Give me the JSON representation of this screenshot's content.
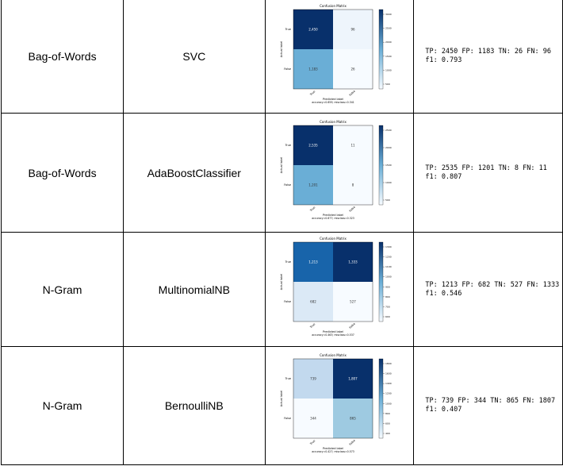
{
  "rows": [
    {
      "feature": "Bag-of-Words",
      "model": "SVC",
      "matrix": {
        "title": "Confusion Matrix",
        "y_label": "Actual label",
        "x_label": "Predicted label",
        "classes": [
          "True",
          "False"
        ],
        "cells": [
          [
            "2,450",
            "96"
          ],
          [
            "1,183",
            "26"
          ]
        ],
        "colors": [
          [
            "#08306b",
            "#eef5fc"
          ],
          [
            "#6aaed6",
            "#f7fbff"
          ]
        ],
        "colorbar_ticks": [
          "3000",
          "2500",
          "2000",
          "1500",
          "1000",
          "500"
        ],
        "footer": "accuracy=0.659; misclass=0.341"
      },
      "metrics": [
        "TP: 2450 FP: 1183 TN: 26 FN: 96",
        "f1: 0.793"
      ]
    },
    {
      "feature": "Bag-of-Words",
      "model": "AdaBoostClassifier",
      "matrix": {
        "title": "Confusion Matrix",
        "y_label": "Actual label",
        "x_label": "Predicted label",
        "classes": [
          "True",
          "False"
        ],
        "cells": [
          [
            "2,535",
            "11"
          ],
          [
            "1,201",
            "8"
          ]
        ],
        "colors": [
          [
            "#08306b",
            "#f7fbff"
          ],
          [
            "#6aaed6",
            "#f7fbff"
          ]
        ],
        "colorbar_ticks": [
          "2500",
          "2000",
          "1500",
          "1000",
          "500"
        ],
        "footer": "accuracy=0.677; misclass=0.323"
      },
      "metrics": [
        "TP: 2535 FP: 1201 TN: 8 FN: 11",
        "f1: 0.807"
      ]
    },
    {
      "feature": "N-Gram",
      "model": "MultinomialNB",
      "matrix": {
        "title": "Confusion Matrix",
        "y_label": "Actual label",
        "x_label": "Predicted label",
        "classes": [
          "True",
          "False"
        ],
        "cells": [
          [
            "1,213",
            "1,333"
          ],
          [
            "682",
            "527"
          ]
        ],
        "colors": [
          [
            "#1864aa",
            "#08306b"
          ],
          [
            "#dbe9f6",
            "#f7fbff"
          ]
        ],
        "colorbar_ticks": [
          "1300",
          "1200",
          "1100",
          "1000",
          "900",
          "800",
          "700",
          "600"
        ],
        "footer": "accuracy=0.463; misclass=0.537"
      },
      "metrics": [
        "TP: 1213 FP: 682 TN: 527 FN: 1333",
        "f1: 0.546"
      ]
    },
    {
      "feature": "N-Gram",
      "model": "BernoulliNB",
      "matrix": {
        "title": "Confusion Matrix",
        "y_label": "Actual label",
        "x_label": "Predicted label",
        "classes": [
          "True",
          "False"
        ],
        "cells": [
          [
            "739",
            "1,807"
          ],
          [
            "344",
            "865"
          ]
        ],
        "colors": [
          [
            "#c2d9ee",
            "#08306b"
          ],
          [
            "#f7fbff",
            "#9ecae1"
          ]
        ],
        "colorbar_ticks": [
          "1800",
          "1600",
          "1400",
          "1200",
          "1000",
          "800",
          "600",
          "400"
        ],
        "footer": "accuracy=0.427; misclass=0.573"
      },
      "metrics": [
        "TP: 739 FP: 344 TN: 865 FN: 1807",
        "f1: 0.407"
      ]
    }
  ]
}
